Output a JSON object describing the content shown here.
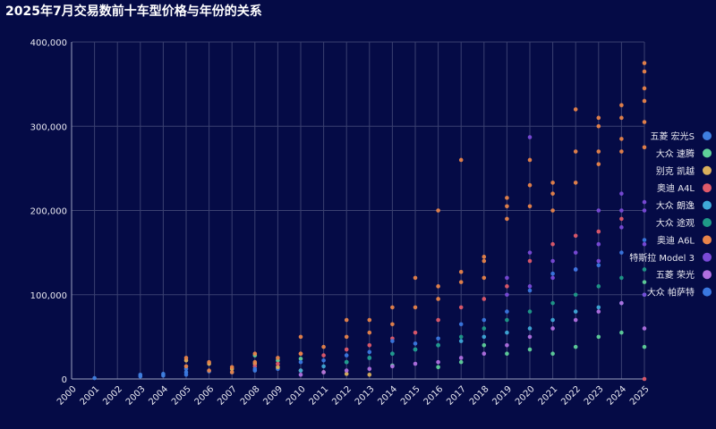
{
  "chart_data": {
    "type": "scatter",
    "title": "2025年7月交易数前十车型价格与年份的关系",
    "xlabel": "",
    "ylabel": "",
    "x_categories": [
      "2000",
      "2001",
      "2002",
      "2003",
      "2004",
      "2005",
      "2006",
      "2007",
      "2008",
      "2009",
      "2010",
      "2011",
      "2012",
      "2013",
      "2014",
      "2015",
      "2016",
      "2017",
      "2018",
      "2019",
      "2020",
      "2021",
      "2022",
      "2023",
      "2024",
      "2025"
    ],
    "ylim": [
      0,
      400000
    ],
    "yticks": [
      0,
      100000,
      200000,
      300000,
      400000
    ],
    "ytick_labels": [
      "0",
      "100,000",
      "200,000",
      "300,000",
      "400,000"
    ],
    "grid": true,
    "legend_position": "right",
    "series": [
      {
        "name": "五菱 宏光S",
        "color": "#3f7fe0",
        "points": [
          [
            2001,
            1000
          ],
          [
            2003,
            3000
          ],
          [
            2003,
            5000
          ],
          [
            2004,
            4000
          ],
          [
            2004,
            6000
          ],
          [
            2005,
            8000
          ],
          [
            2005,
            12000
          ],
          [
            2006,
            9000
          ],
          [
            2007,
            8000
          ],
          [
            2008,
            10000
          ],
          [
            2009,
            12000
          ]
        ]
      },
      {
        "name": "大众 速腾",
        "color": "#5fd19a",
        "points": [
          [
            2008,
            28000
          ],
          [
            2009,
            22000
          ],
          [
            2010,
            24000
          ],
          [
            2012,
            20000
          ],
          [
            2014,
            16000
          ],
          [
            2016,
            14000
          ],
          [
            2017,
            20000
          ],
          [
            2018,
            40000
          ],
          [
            2019,
            30000
          ],
          [
            2020,
            35000
          ],
          [
            2021,
            30000
          ],
          [
            2022,
            38000
          ],
          [
            2023,
            50000
          ],
          [
            2024,
            55000
          ],
          [
            2025,
            115000
          ],
          [
            2025,
            38000
          ]
        ]
      },
      {
        "name": "别克 凯越",
        "color": "#d9b05c",
        "points": [
          [
            2005,
            22000
          ],
          [
            2006,
            18000
          ],
          [
            2007,
            12000
          ],
          [
            2008,
            18000
          ],
          [
            2009,
            14000
          ],
          [
            2010,
            10000
          ],
          [
            2011,
            8000
          ],
          [
            2012,
            6000
          ],
          [
            2013,
            5000
          ]
        ]
      },
      {
        "name": "奥迪 A4L",
        "color": "#e05a6a",
        "points": [
          [
            2008,
            15000
          ],
          [
            2009,
            18000
          ],
          [
            2010,
            30000
          ],
          [
            2011,
            28000
          ],
          [
            2012,
            35000
          ],
          [
            2013,
            40000
          ],
          [
            2014,
            48000
          ],
          [
            2015,
            55000
          ],
          [
            2016,
            70000
          ],
          [
            2017,
            85000
          ],
          [
            2018,
            95000
          ],
          [
            2019,
            110000
          ],
          [
            2020,
            140000
          ],
          [
            2021,
            160000
          ],
          [
            2022,
            170000
          ],
          [
            2023,
            175000
          ],
          [
            2024,
            190000
          ],
          [
            2025,
            0
          ]
        ]
      },
      {
        "name": "大众 朗逸",
        "color": "#3fa9d8",
        "points": [
          [
            2010,
            10000
          ],
          [
            2011,
            15000
          ],
          [
            2012,
            20000
          ],
          [
            2013,
            25000
          ],
          [
            2014,
            30000
          ],
          [
            2015,
            35000
          ],
          [
            2016,
            40000
          ],
          [
            2017,
            45000
          ],
          [
            2018,
            50000
          ],
          [
            2019,
            55000
          ],
          [
            2020,
            60000
          ],
          [
            2021,
            70000
          ],
          [
            2022,
            80000
          ],
          [
            2023,
            85000
          ],
          [
            2024,
            90000
          ],
          [
            2025,
            100000
          ]
        ]
      },
      {
        "name": "大众 途观",
        "color": "#1f9a88",
        "points": [
          [
            2012,
            20000
          ],
          [
            2013,
            25000
          ],
          [
            2014,
            30000
          ],
          [
            2015,
            35000
          ],
          [
            2016,
            40000
          ],
          [
            2017,
            50000
          ],
          [
            2018,
            60000
          ],
          [
            2019,
            70000
          ],
          [
            2020,
            80000
          ],
          [
            2021,
            90000
          ],
          [
            2022,
            100000
          ],
          [
            2023,
            110000
          ],
          [
            2024,
            120000
          ],
          [
            2025,
            130000
          ]
        ]
      },
      {
        "name": "奥迪 A6L",
        "color": "#e8844a",
        "points": [
          [
            2005,
            15000
          ],
          [
            2005,
            25000
          ],
          [
            2006,
            10000
          ],
          [
            2006,
            20000
          ],
          [
            2007,
            8000
          ],
          [
            2007,
            14000
          ],
          [
            2008,
            20000
          ],
          [
            2008,
            30000
          ],
          [
            2009,
            25000
          ],
          [
            2010,
            50000
          ],
          [
            2010,
            30000
          ],
          [
            2011,
            38000
          ],
          [
            2012,
            70000
          ],
          [
            2012,
            50000
          ],
          [
            2013,
            70000
          ],
          [
            2013,
            55000
          ],
          [
            2014,
            85000
          ],
          [
            2014,
            65000
          ],
          [
            2015,
            120000
          ],
          [
            2015,
            85000
          ],
          [
            2016,
            200000
          ],
          [
            2016,
            110000
          ],
          [
            2016,
            95000
          ],
          [
            2017,
            260000
          ],
          [
            2017,
            127000
          ],
          [
            2017,
            115000
          ],
          [
            2018,
            145000
          ],
          [
            2018,
            140000
          ],
          [
            2018,
            120000
          ],
          [
            2019,
            215000
          ],
          [
            2019,
            205000
          ],
          [
            2019,
            190000
          ],
          [
            2020,
            260000
          ],
          [
            2020,
            230000
          ],
          [
            2020,
            205000
          ],
          [
            2021,
            233000
          ],
          [
            2021,
            220000
          ],
          [
            2021,
            200000
          ],
          [
            2022,
            320000
          ],
          [
            2022,
            270000
          ],
          [
            2022,
            233000
          ],
          [
            2023,
            310000
          ],
          [
            2023,
            300000
          ],
          [
            2023,
            270000
          ],
          [
            2023,
            255000
          ],
          [
            2024,
            325000
          ],
          [
            2024,
            310000
          ],
          [
            2024,
            285000
          ],
          [
            2024,
            270000
          ],
          [
            2025,
            375000
          ],
          [
            2025,
            365000
          ],
          [
            2025,
            345000
          ],
          [
            2025,
            330000
          ],
          [
            2025,
            305000
          ],
          [
            2025,
            275000
          ]
        ]
      },
      {
        "name": "特斯拉 Model 3",
        "color": "#7a4ad8",
        "points": [
          [
            2019,
            120000
          ],
          [
            2019,
            100000
          ],
          [
            2020,
            287000
          ],
          [
            2020,
            150000
          ],
          [
            2020,
            110000
          ],
          [
            2021,
            140000
          ],
          [
            2021,
            120000
          ],
          [
            2022,
            150000
          ],
          [
            2022,
            130000
          ],
          [
            2023,
            200000
          ],
          [
            2023,
            160000
          ],
          [
            2023,
            140000
          ],
          [
            2024,
            220000
          ],
          [
            2024,
            200000
          ],
          [
            2024,
            180000
          ],
          [
            2025,
            210000
          ],
          [
            2025,
            200000
          ],
          [
            2025,
            160000
          ],
          [
            2025,
            100000
          ]
        ]
      },
      {
        "name": "五菱 荣光",
        "color": "#b070e0",
        "points": [
          [
            2010,
            5000
          ],
          [
            2011,
            8000
          ],
          [
            2012,
            10000
          ],
          [
            2013,
            12000
          ],
          [
            2014,
            15000
          ],
          [
            2015,
            18000
          ],
          [
            2016,
            20000
          ],
          [
            2017,
            25000
          ],
          [
            2018,
            30000
          ],
          [
            2019,
            40000
          ],
          [
            2020,
            50000
          ],
          [
            2021,
            60000
          ],
          [
            2022,
            70000
          ],
          [
            2023,
            80000
          ],
          [
            2024,
            90000
          ],
          [
            2025,
            60000
          ]
        ]
      },
      {
        "name": "大众 帕萨特",
        "color": "#3a78e0",
        "points": [
          [
            2005,
            5000
          ],
          [
            2008,
            12000
          ],
          [
            2010,
            20000
          ],
          [
            2011,
            22000
          ],
          [
            2012,
            28000
          ],
          [
            2013,
            32000
          ],
          [
            2014,
            45000
          ],
          [
            2015,
            42000
          ],
          [
            2016,
            48000
          ],
          [
            2017,
            65000
          ],
          [
            2018,
            70000
          ],
          [
            2019,
            80000
          ],
          [
            2020,
            105000
          ],
          [
            2021,
            125000
          ],
          [
            2022,
            130000
          ],
          [
            2023,
            135000
          ],
          [
            2024,
            150000
          ],
          [
            2025,
            165000
          ]
        ]
      }
    ]
  }
}
